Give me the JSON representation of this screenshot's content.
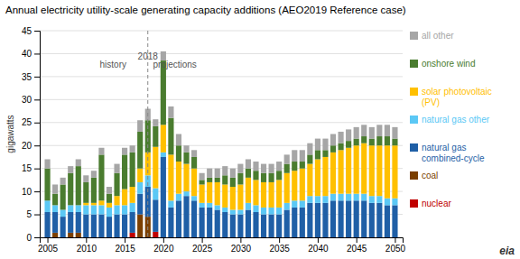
{
  "chart_data": {
    "type": "bar",
    "stacked": true,
    "title": "Annual electricity utility-scale generating capacity additions (AEO2019 Reference case)",
    "ylabel": "gigawatts",
    "x": [
      2005,
      2006,
      2007,
      2008,
      2009,
      2010,
      2011,
      2012,
      2013,
      2014,
      2015,
      2016,
      2017,
      2018,
      2019,
      2020,
      2021,
      2022,
      2023,
      2024,
      2025,
      2026,
      2027,
      2028,
      2029,
      2030,
      2031,
      2032,
      2033,
      2034,
      2035,
      2036,
      2037,
      2038,
      2039,
      2040,
      2041,
      2042,
      2043,
      2044,
      2045,
      2046,
      2047,
      2048,
      2049,
      2050
    ],
    "series": [
      {
        "name": "nuclear",
        "color": "#c00000",
        "values": [
          0,
          0,
          0,
          0,
          0,
          0,
          0,
          0,
          0,
          0,
          0,
          1.0,
          0,
          0,
          1.2,
          0,
          0,
          0,
          0,
          0,
          0,
          0,
          0,
          0,
          0,
          0,
          0,
          0,
          0,
          0,
          0,
          0,
          0,
          0,
          0,
          0,
          0,
          0,
          0,
          0,
          0,
          0,
          0,
          0,
          0,
          0
        ]
      },
      {
        "name": "coal",
        "color": "#7b3f00",
        "values": [
          0,
          1.0,
          0,
          1.0,
          1.0,
          0,
          0,
          0,
          0,
          0,
          0,
          0,
          5.0,
          4.5,
          0,
          0,
          0,
          0,
          0,
          0,
          0,
          0,
          0,
          0,
          0,
          0,
          0,
          0,
          0,
          0,
          0,
          0,
          0,
          0,
          0,
          0,
          0,
          0,
          0,
          0,
          0,
          0,
          0,
          0,
          0,
          0
        ]
      },
      {
        "name": "natural gas\ncombined-cycle",
        "color": "#1f5fa6",
        "values": [
          5.5,
          4.5,
          4.5,
          4.5,
          4.5,
          5.0,
          5.0,
          5.0,
          4.5,
          5.0,
          5.0,
          4.5,
          4.5,
          6.5,
          7.0,
          17.5,
          6.5,
          8.0,
          9.0,
          8.0,
          6.5,
          6.5,
          6.0,
          5.5,
          5.0,
          5.0,
          6.0,
          5.5,
          5.0,
          5.0,
          5.0,
          6.0,
          6.5,
          6.5,
          7.5,
          7.5,
          7.5,
          8.0,
          8.0,
          8.0,
          8.0,
          8.0,
          7.5,
          7.5,
          7.0,
          7.0
        ]
      },
      {
        "name": "natural gas other",
        "color": "#5bc8f5",
        "values": [
          2.5,
          1.5,
          1.5,
          1.5,
          1.5,
          2.0,
          2.0,
          2.0,
          2.0,
          2.0,
          2.0,
          2.0,
          2.5,
          2.5,
          2.5,
          1.0,
          1.5,
          1.5,
          1.0,
          1.0,
          1.0,
          1.0,
          1.0,
          1.0,
          1.0,
          1.0,
          1.5,
          1.5,
          1.5,
          1.5,
          1.5,
          1.5,
          1.5,
          1.5,
          1.5,
          1.5,
          1.5,
          1.5,
          1.5,
          1.5,
          1.5,
          1.5,
          1.5,
          1.5,
          1.5,
          1.5
        ]
      },
      {
        "name": "solar photovoltaic\n(PV)",
        "color": "#ffc000",
        "values": [
          0,
          0,
          0,
          0,
          0,
          0.5,
          0.5,
          1.0,
          1.0,
          2.0,
          3.5,
          3.5,
          3.0,
          5.0,
          9.0,
          6.0,
          10.0,
          7.0,
          6.0,
          6.0,
          4.0,
          4.5,
          5.0,
          5.0,
          5.0,
          5.5,
          5.5,
          5.5,
          5.5,
          5.5,
          6.0,
          6.5,
          6.5,
          7.0,
          7.0,
          8.0,
          8.5,
          9.0,
          9.5,
          10.0,
          10.5,
          11.0,
          11.0,
          11.0,
          11.5,
          11.5
        ]
      },
      {
        "name": "onshore wind",
        "color": "#4a7c2f",
        "values": [
          7.0,
          2.5,
          5.5,
          7.0,
          8.5,
          4.5,
          5.5,
          10.0,
          2.0,
          5.0,
          7.5,
          7.5,
          8.0,
          7.0,
          4.5,
          14.0,
          8.0,
          3.5,
          2.5,
          2.5,
          1.0,
          1.0,
          1.0,
          2.0,
          2.0,
          2.5,
          2.0,
          2.0,
          2.0,
          2.0,
          2.0,
          2.0,
          2.0,
          1.5,
          2.0,
          2.0,
          1.5,
          1.5,
          1.5,
          1.5,
          1.5,
          1.5,
          1.5,
          2.0,
          2.0,
          1.5
        ]
      },
      {
        "name": "all other",
        "color": "#a6a6a6",
        "values": [
          2.0,
          2.0,
          1.5,
          1.5,
          1.5,
          1.5,
          1.5,
          1.5,
          1.5,
          2.0,
          1.5,
          1.5,
          2.5,
          2.5,
          1.5,
          2.0,
          2.5,
          2.5,
          1.5,
          1.5,
          1.5,
          2.0,
          2.0,
          2.0,
          2.0,
          2.0,
          2.0,
          2.0,
          2.0,
          2.0,
          2.0,
          2.0,
          2.5,
          2.5,
          2.5,
          2.5,
          2.5,
          2.5,
          2.5,
          2.5,
          2.5,
          2.5,
          2.5,
          2.5,
          2.5,
          2.5
        ]
      }
    ],
    "xlim": [
      2004,
      2051
    ],
    "xticks": [
      2005,
      2010,
      2015,
      2020,
      2025,
      2030,
      2035,
      2040,
      2045,
      2050
    ],
    "ylim": [
      0,
      45
    ],
    "yticks": [
      0,
      5,
      10,
      15,
      20,
      25,
      30,
      35,
      40,
      45
    ],
    "grid": true,
    "reference_lines": [
      {
        "x": 2018,
        "line_style": "dashed"
      }
    ],
    "annotations": [
      {
        "text": "history",
        "x": 2013.5,
        "y": 37.5
      },
      {
        "text": "projections",
        "x": 2021.5,
        "y": 37.5
      },
      {
        "text": "2018",
        "x": 2018,
        "y": 39.2
      },
      {
        "text": "eia"
      }
    ]
  }
}
